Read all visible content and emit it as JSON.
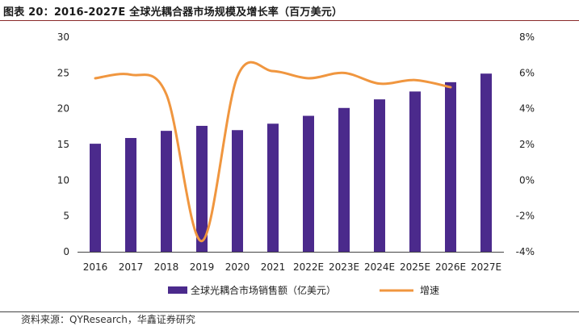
{
  "figure_title": "图表 20：2016-2027E 全球光耦合器市场规模及增长率（百万美元）",
  "source": "资料来源：QYResearch，华鑫证券研究",
  "colors": {
    "bar": "#4b2a8c",
    "line": "#f0963f",
    "axis": "#444444"
  },
  "chart_data": {
    "type": "bar",
    "categories": [
      "2016",
      "2017",
      "2018",
      "2019",
      "2020",
      "2021",
      "2022E",
      "2023E",
      "2024E",
      "2025E",
      "2026E",
      "2027E"
    ],
    "series": [
      {
        "name": "全球光耦合市场销售额（亿美元）",
        "type": "bar",
        "axis": "left",
        "values": [
          15.1,
          15.9,
          16.9,
          17.6,
          17.0,
          17.9,
          19.0,
          20.1,
          21.3,
          22.4,
          23.7,
          24.9
        ]
      },
      {
        "name": "增速",
        "type": "line",
        "axis": "right",
        "values": [
          5.7,
          5.9,
          4.8,
          -3.4,
          5.8,
          6.1,
          5.7,
          6.0,
          5.4,
          5.6,
          5.2,
          null
        ]
      }
    ],
    "y_left": {
      "ylim": [
        0,
        30
      ],
      "ticks": [
        "0",
        "5",
        "10",
        "15",
        "20",
        "25",
        "30"
      ]
    },
    "y_right": {
      "ylim": [
        -4,
        8
      ],
      "ticks": [
        "-4%",
        "-2%",
        "0%",
        "2%",
        "4%",
        "6%",
        "8%"
      ]
    },
    "legend_position": "bottom",
    "grid": false
  }
}
